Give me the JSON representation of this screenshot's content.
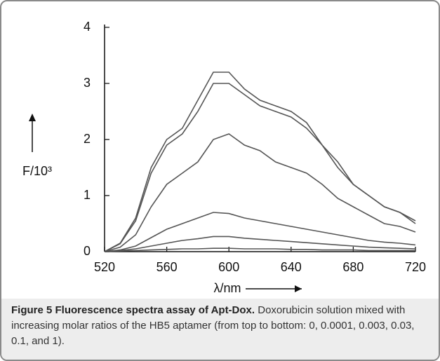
{
  "chart_data": {
    "type": "line",
    "xlabel": "λ/nm",
    "ylabel": "F/10³",
    "caption_title": "Figure 5 Fluorescence spectra assay of Apt-Dox.",
    "caption": "Doxorubicin solution mixed with increasing molar ratios of the HB5 aptamer (from top to bottom: 0, 0.0001, 0.003, 0.03, 0.1, and 1).",
    "x": [
      520,
      530,
      540,
      550,
      560,
      570,
      580,
      590,
      600,
      610,
      620,
      630,
      640,
      650,
      660,
      670,
      680,
      690,
      700,
      710,
      720
    ],
    "series": [
      {
        "color": "#555555",
        "values": [
          0,
          0.15,
          0.6,
          1.5,
          2.0,
          2.2,
          2.7,
          3.2,
          3.2,
          2.9,
          2.7,
          2.6,
          2.5,
          2.3,
          1.9,
          1.6,
          1.2,
          1.0,
          0.8,
          0.7,
          0.5
        ]
      },
      {
        "color": "#555555",
        "values": [
          0,
          0.14,
          0.55,
          1.4,
          1.9,
          2.1,
          2.5,
          3.0,
          3.0,
          2.8,
          2.6,
          2.5,
          2.4,
          2.2,
          1.9,
          1.5,
          1.2,
          1.0,
          0.8,
          0.7,
          0.55
        ]
      },
      {
        "color": "#555555",
        "values": [
          0,
          0.08,
          0.3,
          0.8,
          1.2,
          1.4,
          1.6,
          2.0,
          2.1,
          1.9,
          1.8,
          1.6,
          1.5,
          1.4,
          1.2,
          0.95,
          0.8,
          0.65,
          0.5,
          0.45,
          0.35
        ]
      },
      {
        "color": "#555555",
        "values": [
          0,
          0.03,
          0.1,
          0.25,
          0.4,
          0.5,
          0.6,
          0.7,
          0.68,
          0.6,
          0.55,
          0.5,
          0.45,
          0.4,
          0.35,
          0.3,
          0.25,
          0.2,
          0.17,
          0.15,
          0.12
        ]
      },
      {
        "color": "#555555",
        "values": [
          0,
          0.02,
          0.05,
          0.1,
          0.15,
          0.2,
          0.23,
          0.27,
          0.27,
          0.24,
          0.22,
          0.2,
          0.18,
          0.16,
          0.14,
          0.12,
          0.1,
          0.08,
          0.07,
          0.06,
          0.05
        ]
      },
      {
        "color": "#555555",
        "values": [
          0,
          0.01,
          0.02,
          0.03,
          0.04,
          0.05,
          0.05,
          0.06,
          0.06,
          0.05,
          0.05,
          0.05,
          0.04,
          0.04,
          0.03,
          0.03,
          0.03,
          0.02,
          0.02,
          0.02,
          0.02
        ]
      }
    ],
    "xlim": [
      520,
      720
    ],
    "xticks": [
      520,
      560,
      600,
      640,
      680,
      720
    ],
    "ylim": [
      0,
      4
    ],
    "yticks": [
      0,
      1,
      2,
      3,
      4
    ],
    "grid": false
  }
}
